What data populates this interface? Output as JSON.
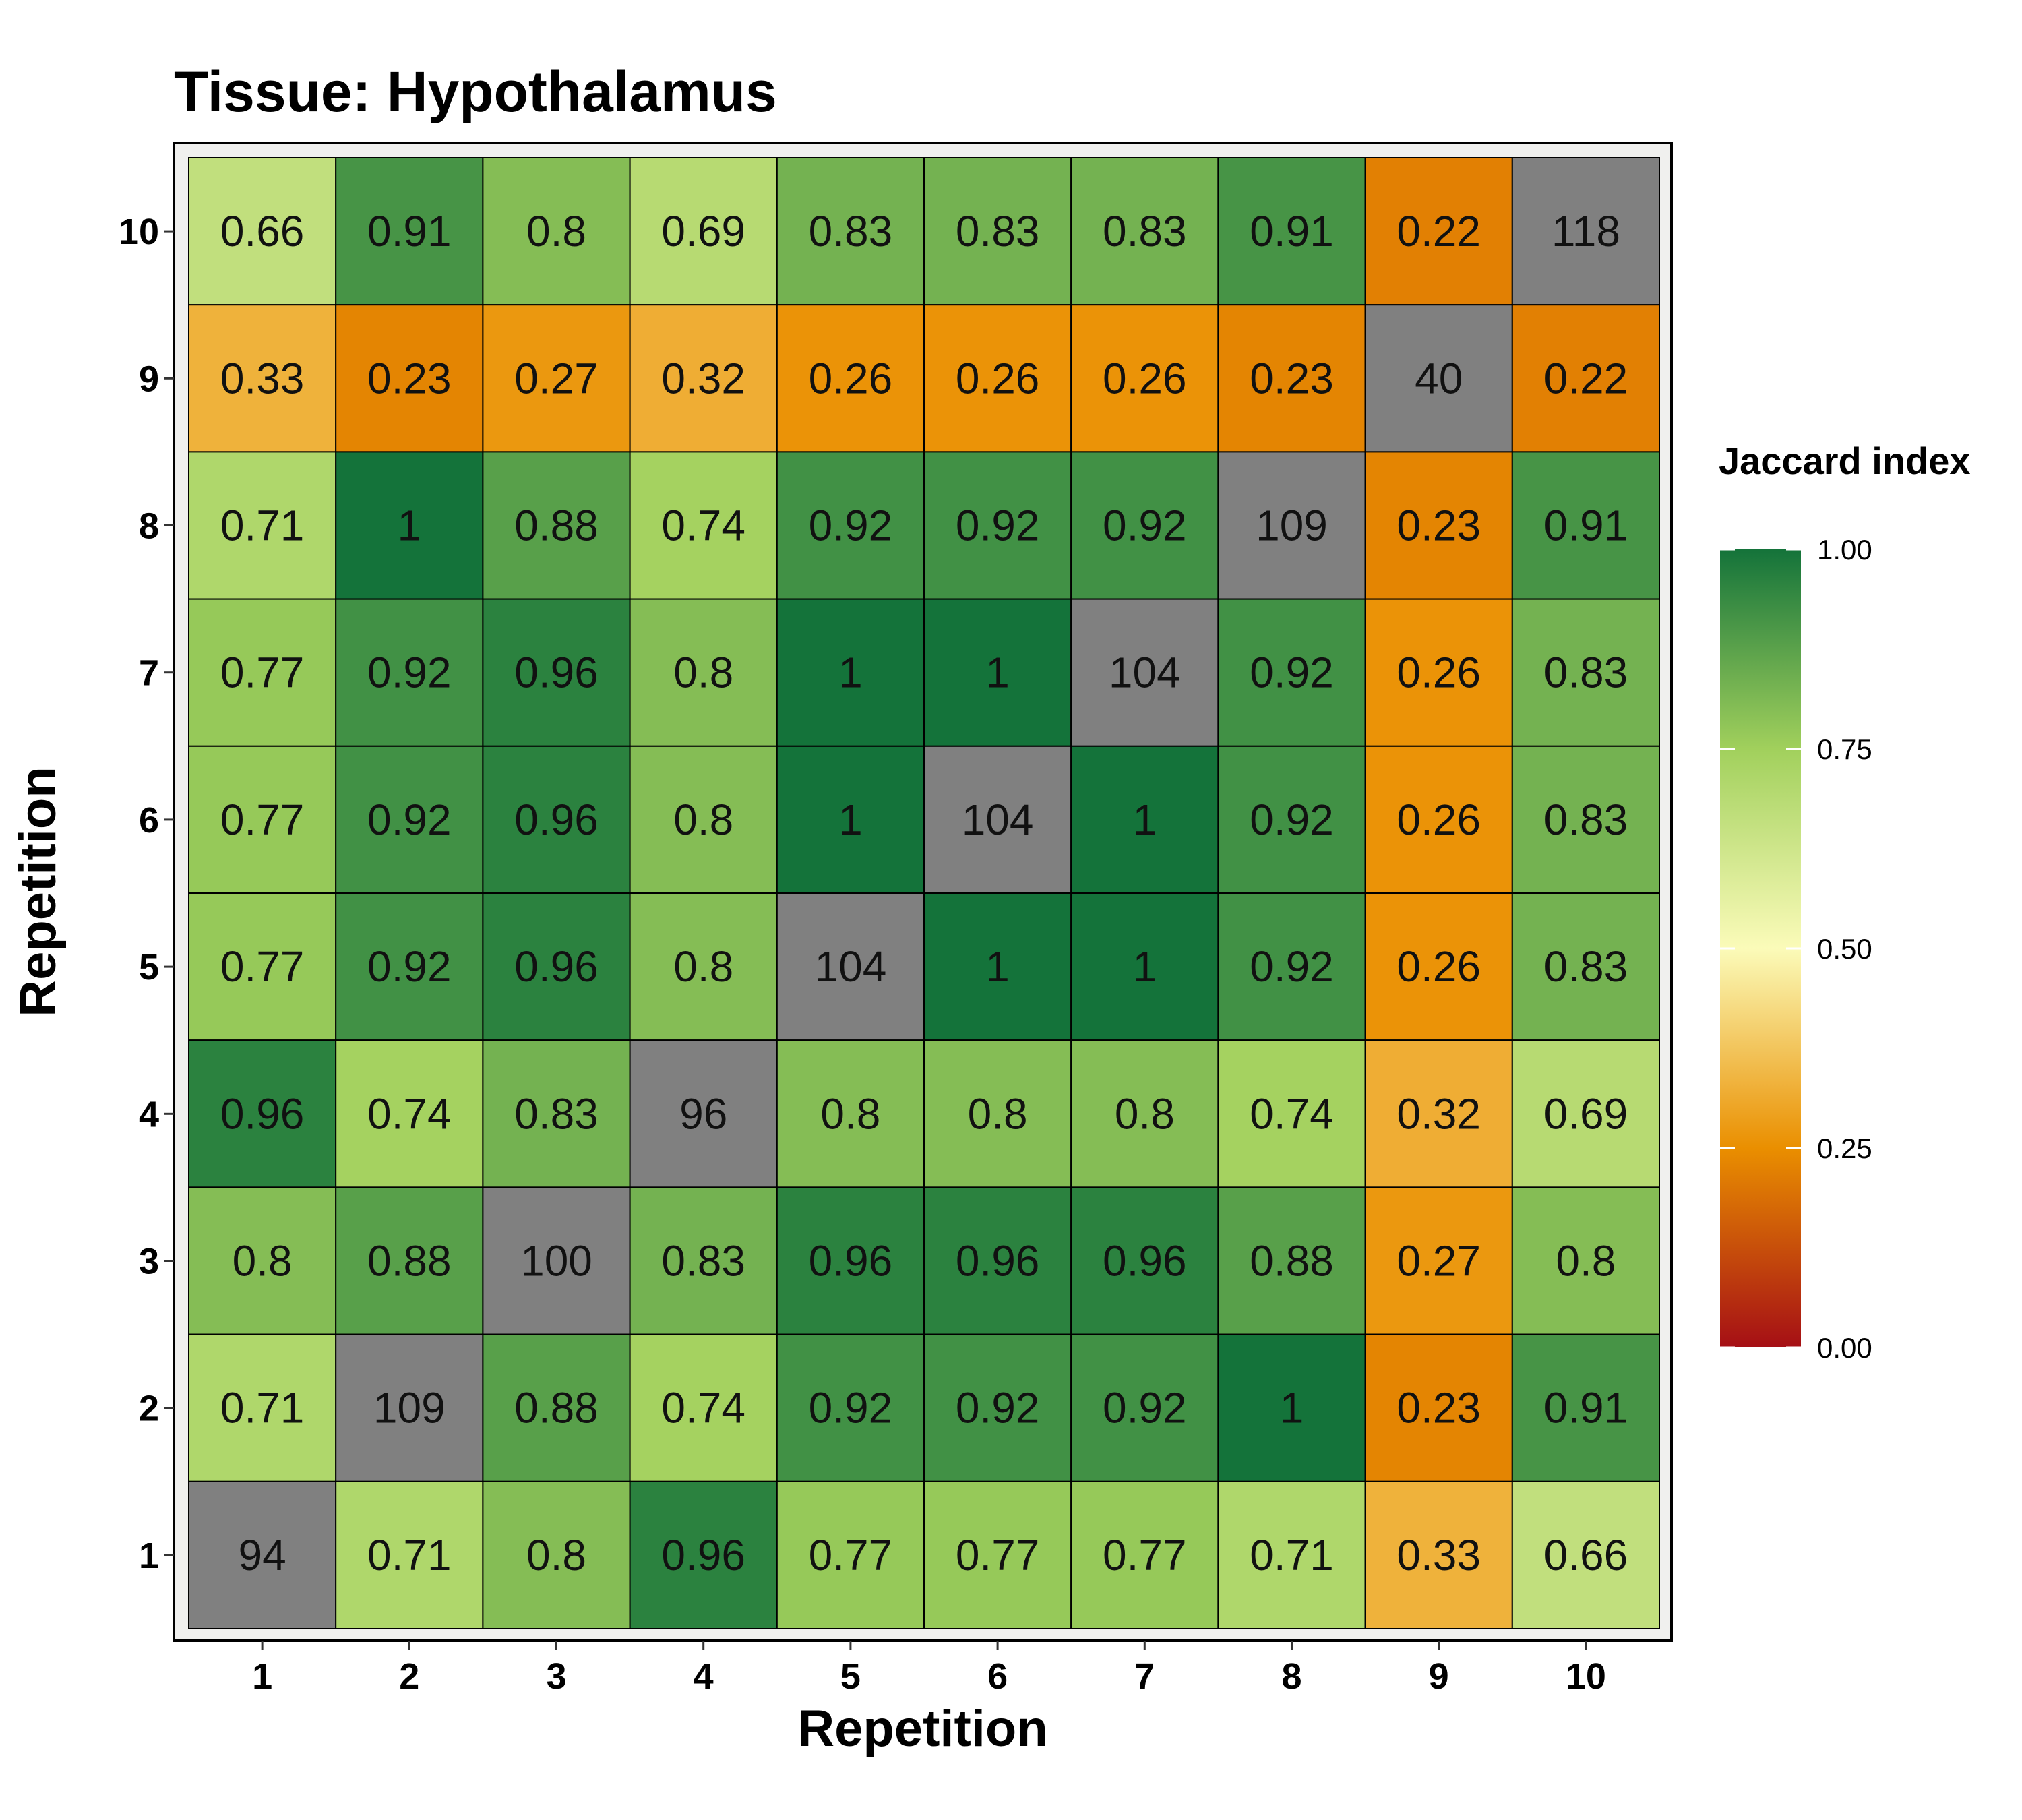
{
  "chart_data": {
    "type": "heatmap",
    "title": "Tissue: Hypothalamus",
    "xlabel": "Repetition",
    "ylabel": "Repetition",
    "x_categories": [
      "1",
      "2",
      "3",
      "4",
      "5",
      "6",
      "7",
      "8",
      "9",
      "10"
    ],
    "y_categories": [
      "1",
      "2",
      "3",
      "4",
      "5",
      "6",
      "7",
      "8",
      "9",
      "10"
    ],
    "rows_top_to_bottom": [
      "10",
      "9",
      "8",
      "7",
      "6",
      "5",
      "4",
      "3",
      "2",
      "1"
    ],
    "cells": [
      [
        "0.66",
        "0.91",
        "0.8",
        "0.69",
        "0.83",
        "0.83",
        "0.83",
        "0.91",
        "0.22",
        "118"
      ],
      [
        "0.33",
        "0.23",
        "0.27",
        "0.32",
        "0.26",
        "0.26",
        "0.26",
        "0.23",
        "40",
        "0.22"
      ],
      [
        "0.71",
        "1",
        "0.88",
        "0.74",
        "0.92",
        "0.92",
        "0.92",
        "109",
        "0.23",
        "0.91"
      ],
      [
        "0.77",
        "0.92",
        "0.96",
        "0.8",
        "1",
        "1",
        "104",
        "0.92",
        "0.26",
        "0.83"
      ],
      [
        "0.77",
        "0.92",
        "0.96",
        "0.8",
        "1",
        "104",
        "1",
        "0.92",
        "0.26",
        "0.83"
      ],
      [
        "0.77",
        "0.92",
        "0.96",
        "0.8",
        "104",
        "1",
        "1",
        "0.92",
        "0.26",
        "0.83"
      ],
      [
        "0.96",
        "0.74",
        "0.83",
        "96",
        "0.8",
        "0.8",
        "0.8",
        "0.74",
        "0.32",
        "0.69"
      ],
      [
        "0.8",
        "0.88",
        "100",
        "0.83",
        "0.96",
        "0.96",
        "0.96",
        "0.88",
        "0.27",
        "0.8"
      ],
      [
        "0.71",
        "109",
        "0.88",
        "0.74",
        "0.92",
        "0.92",
        "0.92",
        "1",
        "0.23",
        "0.91"
      ],
      [
        "94",
        "0.71",
        "0.8",
        "0.96",
        "0.77",
        "0.77",
        "0.77",
        "0.71",
        "0.33",
        "0.66"
      ]
    ],
    "diagonal_color": "#808080",
    "legend": {
      "title": "Jaccard index",
      "placement": "right",
      "range": [
        0,
        1
      ],
      "ticks": [
        "1.00",
        "0.75",
        "0.50",
        "0.25",
        "0.00"
      ],
      "tick_values": [
        1.0,
        0.75,
        0.5,
        0.25,
        0.0
      ],
      "stops": [
        {
          "value": 0.0,
          "color": "#a50f15"
        },
        {
          "value": 0.25,
          "color": "#ea8f00"
        },
        {
          "value": 0.5,
          "color": "#fbfbb9"
        },
        {
          "value": 0.75,
          "color": "#a1d05c"
        },
        {
          "value": 1.0,
          "color": "#14733a"
        }
      ]
    }
  }
}
